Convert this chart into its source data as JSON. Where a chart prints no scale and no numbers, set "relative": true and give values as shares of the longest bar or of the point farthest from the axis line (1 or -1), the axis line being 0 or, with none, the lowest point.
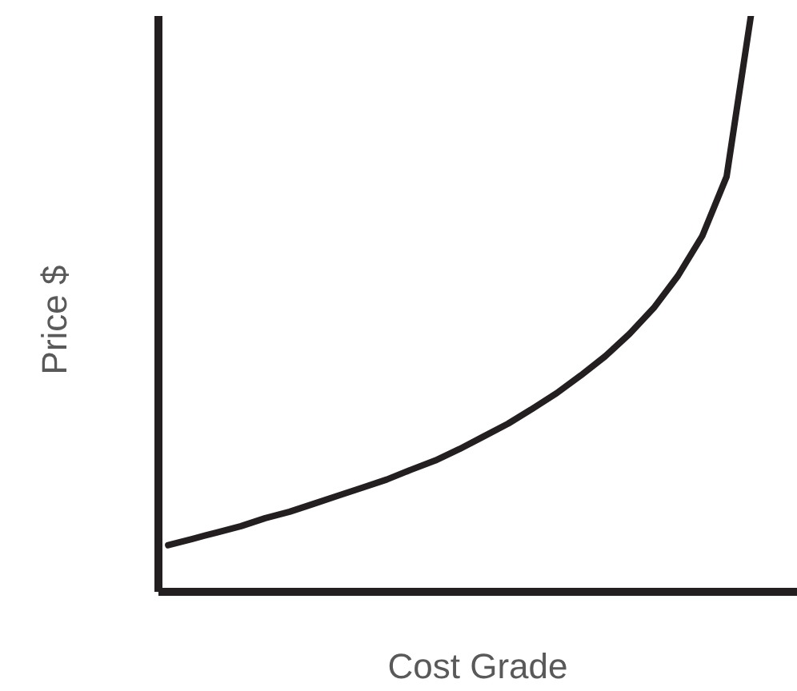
{
  "chart_data": {
    "type": "line",
    "relative": true,
    "xlabel": "Cost Grade",
    "ylabel": "Price $",
    "line_style": "solid",
    "categories": [
      null,
      null,
      null,
      null,
      null,
      null,
      null,
      null,
      null,
      null,
      null,
      null,
      null,
      null,
      null,
      null,
      null,
      null,
      null,
      null,
      null,
      null,
      null,
      null,
      null
    ],
    "series": [
      {
        "color": "#231f20",
        "values": [
          0.081,
          0.092,
          0.103,
          0.114,
          0.128,
          0.139,
          0.153,
          0.167,
          0.181,
          0.195,
          0.212,
          0.228,
          0.248,
          0.27,
          0.292,
          0.318,
          0.345,
          0.376,
          0.409,
          0.448,
          0.493,
          0.549,
          0.618,
          0.721,
          1
        ]
      }
    ]
  }
}
